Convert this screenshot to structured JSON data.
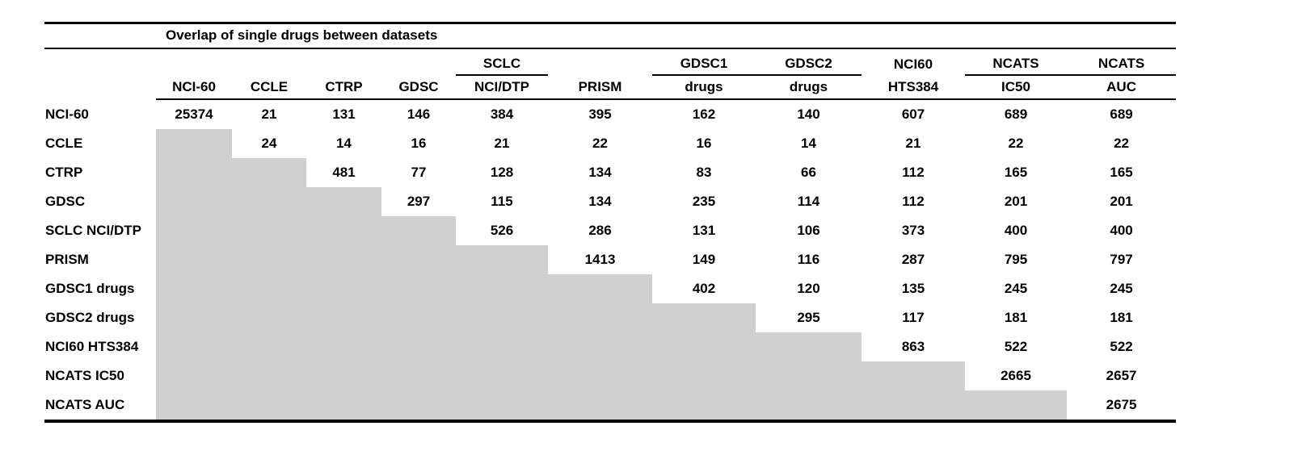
{
  "title": "Overlap of single drugs between datasets",
  "table": {
    "columns": [
      {
        "id": "nci-60",
        "top": "",
        "bottom": "NCI-60",
        "group_underline": false
      },
      {
        "id": "ccle",
        "top": "",
        "bottom": "CCLE",
        "group_underline": false
      },
      {
        "id": "ctrp",
        "top": "",
        "bottom": "CTRP",
        "group_underline": false
      },
      {
        "id": "gdsc",
        "top": "",
        "bottom": "GDSC",
        "group_underline": false
      },
      {
        "id": "sclc-nci-dtp",
        "top": "SCLC",
        "bottom": "NCI/DTP",
        "group_underline": true
      },
      {
        "id": "prism",
        "top": "",
        "bottom": "PRISM",
        "group_underline": false
      },
      {
        "id": "gdsc1-drugs",
        "top": "GDSC1",
        "bottom": "drugs",
        "group_underline": true
      },
      {
        "id": "gdsc2-drugs",
        "top": "GDSC2",
        "bottom": "drugs",
        "group_underline": true
      },
      {
        "id": "nci60-hts384",
        "top": "NCI60",
        "bottom": "HTS384",
        "group_underline": false
      },
      {
        "id": "ncats-ic50",
        "top": "NCATS",
        "bottom": "IC50",
        "group_underline": true
      },
      {
        "id": "ncats-auc",
        "top": "NCATS",
        "bottom": "AUC",
        "group_underline": true
      }
    ],
    "rows": [
      {
        "label": "NCI-60",
        "values": [
          25374,
          21,
          131,
          146,
          384,
          395,
          162,
          140,
          607,
          689,
          689
        ]
      },
      {
        "label": "CCLE",
        "values": [
          null,
          24,
          14,
          16,
          21,
          22,
          16,
          14,
          21,
          22,
          22
        ]
      },
      {
        "label": "CTRP",
        "values": [
          null,
          null,
          481,
          77,
          128,
          134,
          83,
          66,
          112,
          165,
          165
        ]
      },
      {
        "label": "GDSC",
        "values": [
          null,
          null,
          null,
          297,
          115,
          134,
          235,
          114,
          112,
          201,
          201
        ]
      },
      {
        "label": "SCLC NCI/DTP",
        "values": [
          null,
          null,
          null,
          null,
          526,
          286,
          131,
          106,
          373,
          400,
          400
        ]
      },
      {
        "label": "PRISM",
        "values": [
          null,
          null,
          null,
          null,
          null,
          1413,
          149,
          116,
          287,
          795,
          797
        ]
      },
      {
        "label": "GDSC1 drugs",
        "values": [
          null,
          null,
          null,
          null,
          null,
          null,
          402,
          120,
          135,
          245,
          245
        ]
      },
      {
        "label": "GDSC2 drugs",
        "values": [
          null,
          null,
          null,
          null,
          null,
          null,
          null,
          295,
          117,
          181,
          181
        ]
      },
      {
        "label": "NCI60 HTS384",
        "values": [
          null,
          null,
          null,
          null,
          null,
          null,
          null,
          null,
          863,
          522,
          522
        ]
      },
      {
        "label": "NCATS IC50",
        "values": [
          null,
          null,
          null,
          null,
          null,
          null,
          null,
          null,
          null,
          2665,
          2657
        ]
      },
      {
        "label": "NCATS AUC",
        "values": [
          null,
          null,
          null,
          null,
          null,
          null,
          null,
          null,
          null,
          null,
          2675
        ]
      }
    ],
    "shaded_cell_color": "#d1d0d1",
    "text_color": "#000000"
  }
}
